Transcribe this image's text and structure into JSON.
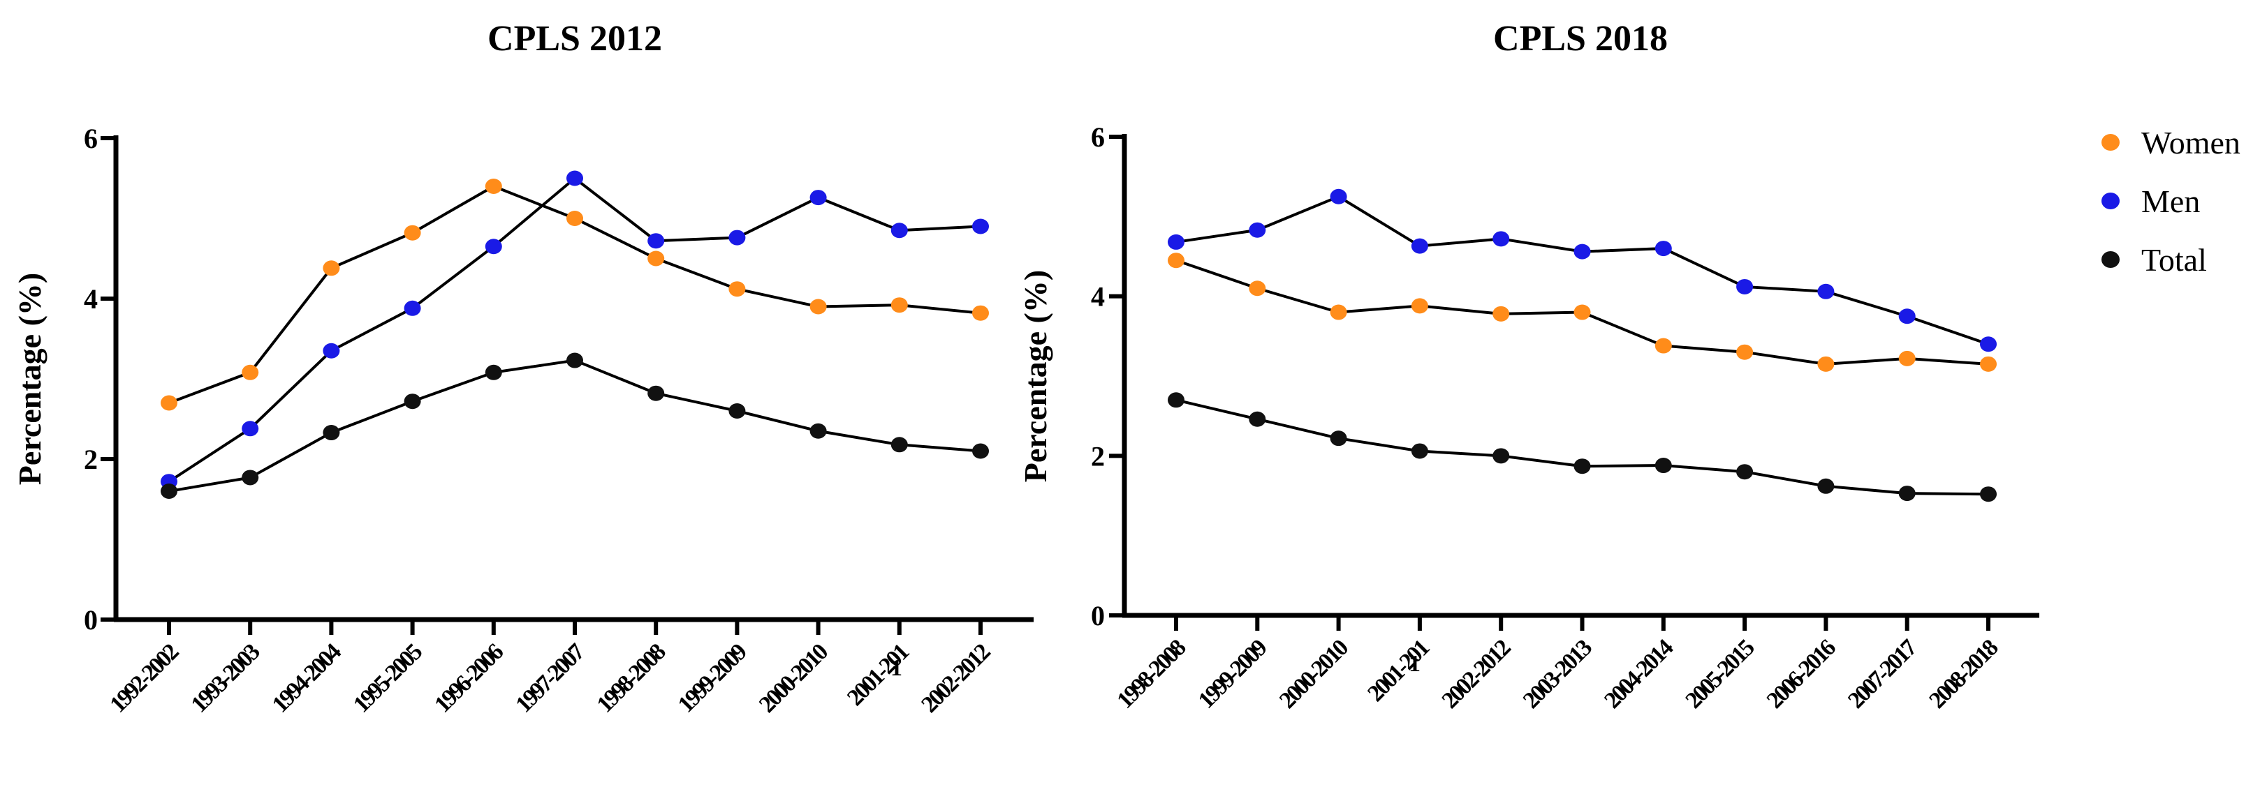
{
  "chart_data": [
    {
      "type": "line",
      "title": "CPLS 2012",
      "xlabel": "",
      "ylabel": "Percentage (%)",
      "ylim": [
        0,
        6
      ],
      "yticks": [
        "0",
        "2",
        "4",
        "6"
      ],
      "categories": [
        "1992-2002",
        "1993-2003",
        "1994-2004",
        "1995-2005",
        "1996-2006",
        "1997-2007",
        "1998-2008",
        "1999-2009",
        "2000-2010",
        "2001-201",
        "2002-2012"
      ],
      "stray_label": "1",
      "series": [
        {
          "name": "Women",
          "color": "#FF8C1A",
          "values": [
            2.7,
            3.08,
            4.38,
            4.82,
            5.4,
            5.0,
            4.5,
            4.12,
            3.9,
            3.92,
            3.82
          ]
        },
        {
          "name": "Men",
          "color": "#1A1AE6",
          "values": [
            1.72,
            2.38,
            3.35,
            3.88,
            4.65,
            5.5,
            4.72,
            4.76,
            5.26,
            4.85,
            4.9
          ]
        },
        {
          "name": "Total",
          "color": "#111111",
          "values": [
            1.6,
            1.77,
            2.33,
            2.72,
            3.08,
            3.23,
            2.82,
            2.6,
            2.35,
            2.18,
            2.1
          ]
        }
      ]
    },
    {
      "type": "line",
      "title": "CPLS 2018",
      "xlabel": "",
      "ylabel": "Percentage (%)",
      "ylim": [
        0,
        6
      ],
      "yticks": [
        "0",
        "2",
        "4",
        "6"
      ],
      "categories": [
        "1998-2008",
        "1999-2009",
        "2000-2010",
        "2001-201",
        "2002-2012",
        "2003-2013",
        "2004-2014",
        "2005-2015",
        "2006-2016",
        "2007-2017",
        "2008-2018"
      ],
      "stray_label": "1",
      "series": [
        {
          "name": "Women",
          "color": "#FF8C1A",
          "values": [
            4.45,
            4.1,
            3.8,
            3.88,
            3.78,
            3.8,
            3.38,
            3.3,
            3.15,
            3.22,
            3.15
          ]
        },
        {
          "name": "Men",
          "color": "#1A1AE6",
          "values": [
            4.68,
            4.83,
            5.25,
            4.63,
            4.72,
            4.56,
            4.6,
            4.12,
            4.06,
            3.75,
            3.4
          ]
        },
        {
          "name": "Total",
          "color": "#111111",
          "values": [
            2.7,
            2.46,
            2.22,
            2.06,
            2.0,
            1.87,
            1.88,
            1.8,
            1.62,
            1.53,
            1.52
          ]
        }
      ]
    }
  ],
  "legend": [
    {
      "name": "Women",
      "color": "#FF8C1A"
    },
    {
      "name": "Men",
      "color": "#1A1AE6"
    },
    {
      "name": "Total",
      "color": "#111111"
    }
  ]
}
